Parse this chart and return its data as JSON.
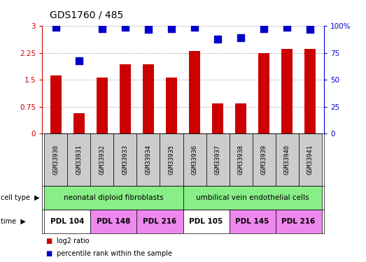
{
  "title": "GDS1760 / 485",
  "samples": [
    "GSM33930",
    "GSM33931",
    "GSM33932",
    "GSM33933",
    "GSM33934",
    "GSM33935",
    "GSM33936",
    "GSM33937",
    "GSM33938",
    "GSM33939",
    "GSM33940",
    "GSM33941"
  ],
  "log2_ratio": [
    1.62,
    0.58,
    1.57,
    1.93,
    1.93,
    1.57,
    2.3,
    0.85,
    0.85,
    2.25,
    2.37,
    2.37
  ],
  "percentile_rank": [
    99,
    68,
    98,
    99,
    97,
    98,
    99,
    88,
    89,
    98,
    99,
    97
  ],
  "bar_color": "#cc0000",
  "dot_color": "#0000cc",
  "ylim_left": [
    0,
    3.0
  ],
  "ylim_right": [
    0,
    100
  ],
  "yticks_left": [
    0,
    0.75,
    1.5,
    2.25,
    3.0
  ],
  "ytick_labels_left": [
    "0",
    "0.75",
    "1.5",
    "2.25",
    "3"
  ],
  "yticks_right": [
    0,
    25,
    50,
    75,
    100
  ],
  "ytick_labels_right": [
    "0",
    "25",
    "50",
    "75",
    "100%"
  ],
  "cell_type_groups": [
    {
      "label": "neonatal diploid fibroblasts",
      "start": 0,
      "end": 6,
      "color": "#88ee88"
    },
    {
      "label": "umbilical vein endothelial cells",
      "start": 6,
      "end": 12,
      "color": "#88ee88"
    }
  ],
  "time_groups": [
    {
      "label": "PDL 104",
      "start": 0,
      "end": 2,
      "color": "#ffffff"
    },
    {
      "label": "PDL 148",
      "start": 2,
      "end": 4,
      "color": "#ee88ee"
    },
    {
      "label": "PDL 216",
      "start": 4,
      "end": 6,
      "color": "#ee88ee"
    },
    {
      "label": "PDL 105",
      "start": 6,
      "end": 8,
      "color": "#ffffff"
    },
    {
      "label": "PDL 145",
      "start": 8,
      "end": 10,
      "color": "#ee88ee"
    },
    {
      "label": "PDL 216",
      "start": 10,
      "end": 12,
      "color": "#ee88ee"
    }
  ],
  "legend_entries": [
    {
      "label": "log2 ratio",
      "color": "#cc0000"
    },
    {
      "label": "percentile rank within the sample",
      "color": "#0000cc"
    }
  ],
  "left_tick_color": "#cc0000",
  "right_tick_color": "#0000cc",
  "sample_box_color": "#cccccc",
  "grid_style": "dotted",
  "grid_color": "#888888",
  "bar_width": 0.5,
  "dot_size": 45
}
